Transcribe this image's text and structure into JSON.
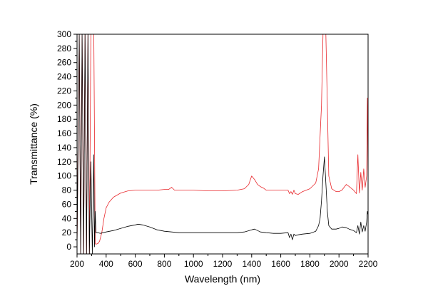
{
  "chart_data": {
    "type": "line",
    "xlabel": "Wavelength (nm)",
    "ylabel": "Transmittance (%)",
    "xlim": [
      200,
      2200
    ],
    "ylim": [
      -10,
      300
    ],
    "xticks": [
      200,
      400,
      600,
      800,
      1000,
      1200,
      1400,
      1600,
      1800,
      2000,
      2200
    ],
    "yticks": [
      0,
      20,
      40,
      60,
      80,
      100,
      120,
      140,
      160,
      180,
      200,
      220,
      240,
      260,
      280,
      300
    ],
    "grid": false,
    "legend": "none",
    "series": [
      {
        "color": "#e8262a",
        "x": [
          200,
          215,
          225,
          235,
          245,
          255,
          265,
          275,
          285,
          295,
          305,
          315,
          325,
          335,
          345,
          355,
          370,
          385,
          400,
          420,
          450,
          500,
          550,
          600,
          650,
          700,
          750,
          800,
          830,
          850,
          870,
          880,
          900,
          950,
          1000,
          1100,
          1200,
          1300,
          1350,
          1380,
          1400,
          1420,
          1440,
          1460,
          1480,
          1500,
          1550,
          1600,
          1650,
          1660,
          1670,
          1680,
          1690,
          1700,
          1720,
          1750,
          1800,
          1840,
          1860,
          1880,
          1890,
          1900,
          1910,
          1920,
          1930,
          1950,
          1980,
          2000,
          2020,
          2050,
          2070,
          2100,
          2120,
          2130,
          2140,
          2150,
          2160,
          2170,
          2180,
          2190,
          2195,
          2200
        ],
        "y": [
          0,
          300,
          -10,
          300,
          -10,
          300,
          -10,
          300,
          -10,
          300,
          300,
          300,
          4,
          4,
          5,
          8,
          20,
          40,
          55,
          63,
          70,
          76,
          79,
          80,
          80,
          80,
          80,
          81,
          81,
          84,
          80,
          80,
          80,
          80,
          80,
          79,
          79,
          80,
          82,
          88,
          100,
          95,
          88,
          85,
          83,
          80,
          80,
          80,
          80,
          75,
          78,
          74,
          80,
          75,
          74,
          78,
          82,
          90,
          110,
          200,
          300,
          300,
          300,
          200,
          100,
          82,
          78,
          78,
          80,
          88,
          85,
          80,
          75,
          130,
          76,
          105,
          80,
          110,
          84,
          100,
          210,
          90
        ]
      },
      {
        "color": "#000000",
        "x": [
          200,
          215,
          225,
          235,
          245,
          255,
          265,
          275,
          285,
          295,
          305,
          315,
          320,
          325,
          330,
          335,
          345,
          360,
          380,
          400,
          450,
          500,
          550,
          600,
          620,
          650,
          700,
          750,
          800,
          850,
          900,
          1000,
          1100,
          1200,
          1300,
          1350,
          1400,
          1420,
          1440,
          1460,
          1500,
          1550,
          1600,
          1650,
          1660,
          1670,
          1680,
          1690,
          1700,
          1720,
          1750,
          1800,
          1840,
          1860,
          1870,
          1880,
          1890,
          1900,
          1910,
          1920,
          1930,
          1950,
          1980,
          2000,
          2020,
          2050,
          2070,
          2100,
          2120,
          2130,
          2140,
          2150,
          2160,
          2170,
          2180,
          2190,
          2195,
          2200
        ],
        "y": [
          0,
          300,
          -10,
          300,
          -10,
          300,
          -10,
          300,
          -10,
          120,
          -10,
          130,
          0,
          50,
          20,
          20,
          20,
          19,
          20,
          21,
          23,
          26,
          29,
          31,
          32,
          31,
          28,
          24,
          22,
          21,
          20,
          20,
          20,
          20,
          20,
          21,
          24,
          25,
          23,
          21,
          20,
          19,
          19,
          20,
          13,
          18,
          10,
          18,
          16,
          17,
          18,
          19,
          22,
          30,
          40,
          65,
          100,
          127,
          90,
          50,
          30,
          25,
          25,
          26,
          28,
          27,
          25,
          23,
          20,
          30,
          18,
          35,
          21,
          30,
          22,
          35,
          50,
          45
        ]
      }
    ]
  }
}
